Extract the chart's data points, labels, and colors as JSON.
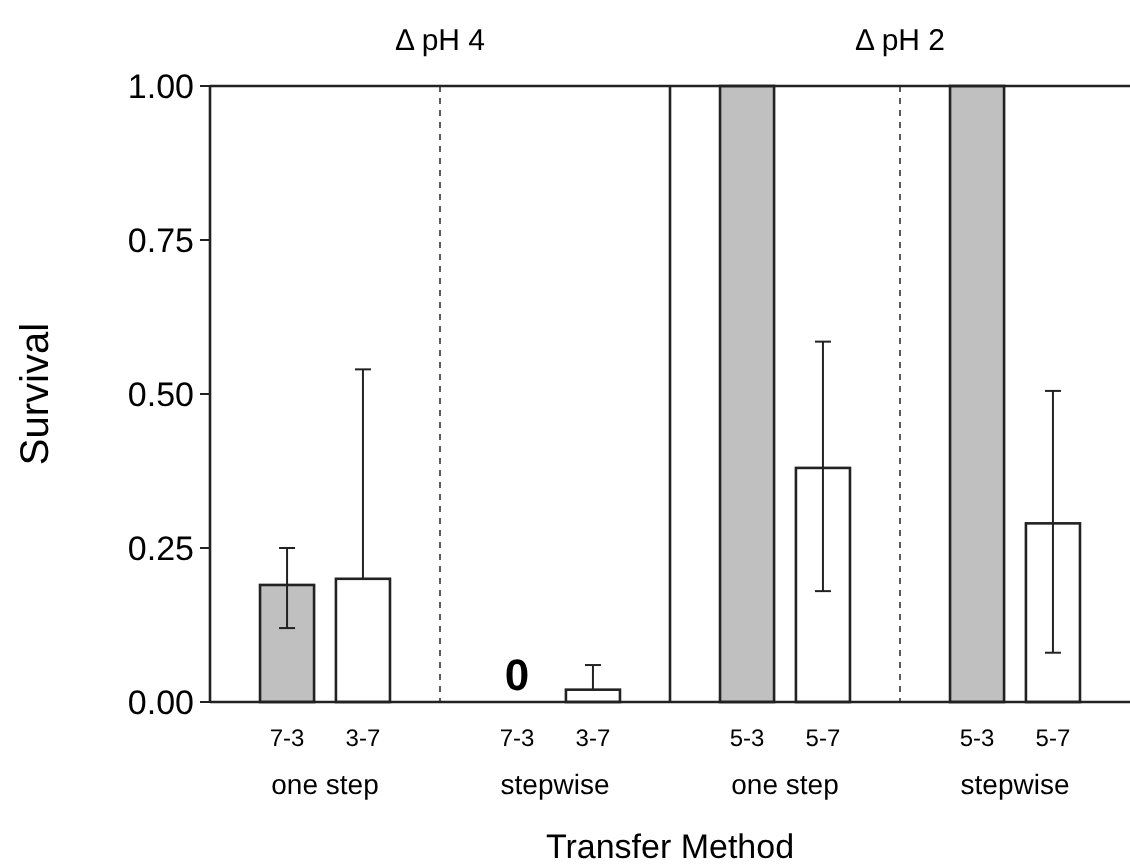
{
  "chart_data": [
    {
      "type": "bar",
      "title": "Δ pH 4",
      "ylabel": "Survival",
      "xlabel": "Transfer Method",
      "categories": [
        "one step",
        "stepwise"
      ],
      "ylim": [
        0,
        1
      ],
      "yticks": [
        {
          "value": 0,
          "label": "0.00"
        },
        {
          "value": 0.25,
          "label": "0.25"
        },
        {
          "value": 0.5,
          "label": "0.50"
        },
        {
          "value": 0.75,
          "label": "0.75"
        },
        {
          "value": 1,
          "label": "1.00"
        }
      ],
      "grid": false,
      "series": [
        {
          "name": "7-3",
          "color": "#c0c0c0",
          "values": [
            0.19,
            0
          ],
          "errors": [
            [
              0.12,
              0.25
            ],
            null
          ],
          "value_labels": [
            null,
            "0"
          ]
        },
        {
          "name": "3-7",
          "color": "#ffffff",
          "values": [
            0.2,
            0.02
          ],
          "errors": [
            [
              0.2,
              0.54
            ],
            [
              0.02,
              0.06
            ]
          ]
        }
      ]
    },
    {
      "type": "bar",
      "title": "Δ pH 2",
      "categories": [
        "one step",
        "stepwise"
      ],
      "ylim": [
        0,
        1
      ],
      "tick_labels": "x",
      "grid": false,
      "series": [
        {
          "name": "5-3",
          "color": "#c0c0c0",
          "values": [
            1,
            1
          ]
        },
        {
          "name": "5-7",
          "color": "#ffffff",
          "values": [
            0.38,
            0.29
          ],
          "errors": [
            [
              0.18,
              0.585
            ],
            [
              0.08,
              0.505
            ]
          ]
        }
      ]
    }
  ]
}
